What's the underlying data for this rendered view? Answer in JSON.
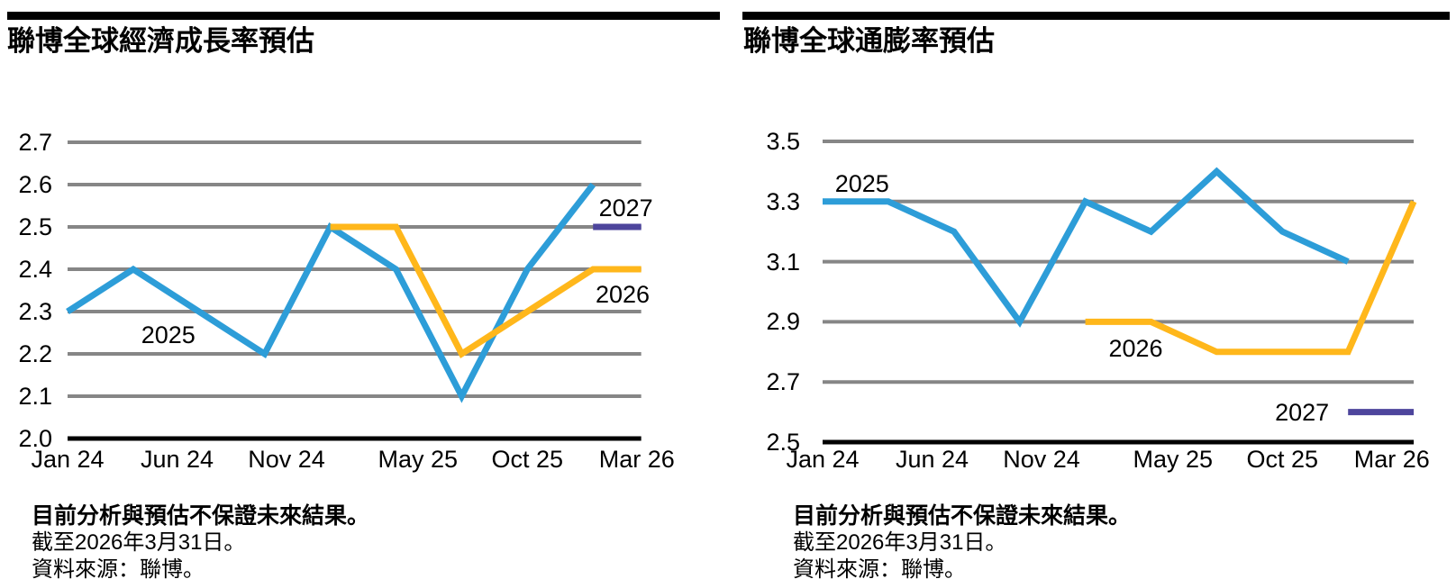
{
  "charts": [
    {
      "title": "聯博全球經濟成長率預估",
      "footer": {
        "disclaimer": "目前分析與預估不保證未來結果。",
        "as_of": "截至2026年3月31日。",
        "source": "資料來源：聯博。"
      },
      "chart_data": {
        "type": "line",
        "title": "聯博全球經濟成長率預估",
        "xlabel": "",
        "ylabel": "",
        "ylim": [
          2.0,
          2.7
        ],
        "y_tick_step": 0.1,
        "y_tick_labels": [
          "2.7",
          "2.6",
          "2.5",
          "2.4",
          "2.3",
          "2.2",
          "2.1",
          "2.0"
        ],
        "x_tick_labels": [
          "Jan 24",
          "Jun 24",
          "Nov 24",
          "May 25",
          "Oct 25",
          "Mar 26"
        ],
        "x_tick_months": [
          0,
          5,
          10,
          16,
          21,
          26
        ],
        "x_domain_months": [
          0,
          26.2
        ],
        "grid": true,
        "grid_color": "#868686",
        "axis_color": "#000000",
        "legend_position": "inline-annotations",
        "series": [
          {
            "name": "2025",
            "color": "#2D9DD8",
            "months": [
              0,
              3,
              6,
              9,
              12,
              15,
              18,
              21,
              24
            ],
            "values": [
              2.3,
              2.4,
              2.3,
              2.2,
              2.5,
              2.4,
              2.1,
              2.4,
              2.6
            ],
            "label": {
              "text": "2025",
              "m": 4.6,
              "v": 2.245
            }
          },
          {
            "name": "2026",
            "color": "#FFB71B",
            "months": [
              12,
              15,
              18,
              21,
              24,
              26.2
            ],
            "values": [
              2.5,
              2.5,
              2.2,
              2.3,
              2.4,
              2.4
            ],
            "label": {
              "text": "2026",
              "m": 25.35,
              "v": 2.34
            }
          },
          {
            "name": "2027",
            "color": "#4D459C",
            "months": [
              24,
              26.2
            ],
            "values": [
              2.5,
              2.5
            ],
            "label": {
              "text": "2027",
              "m": 25.5,
              "v": 2.545
            }
          }
        ]
      }
    },
    {
      "title": "聯博全球通膨率預估",
      "footer": {
        "disclaimer": "目前分析與預估不保證未來結果。",
        "as_of": "截至2026年3月31日。",
        "source": "資料來源：聯博。"
      },
      "chart_data": {
        "type": "line",
        "title": "聯博全球通膨率預估",
        "xlabel": "",
        "ylabel": "",
        "ylim": [
          2.5,
          3.5
        ],
        "y_tick_step": 0.2,
        "y_tick_labels": [
          "3.5",
          "3.3",
          "3.1",
          "2.9",
          "2.7",
          "2.5"
        ],
        "x_tick_labels": [
          "Jan 24",
          "Jun 24",
          "Nov 24",
          "May 25",
          "Oct 25",
          "Mar 26"
        ],
        "x_tick_months": [
          0,
          5,
          10,
          16,
          21,
          26
        ],
        "x_domain_months": [
          0,
          27
        ],
        "grid": true,
        "grid_color": "#868686",
        "axis_color": "#000000",
        "legend_position": "inline-annotations",
        "series": [
          {
            "name": "2025",
            "color": "#2D9DD8",
            "months": [
              0,
              3,
              6,
              9,
              12,
              15,
              18,
              21,
              24
            ],
            "values": [
              3.3,
              3.3,
              3.2,
              2.9,
              3.3,
              3.2,
              3.4,
              3.2,
              3.1
            ],
            "label": {
              "text": "2025",
              "m": 1.8,
              "v": 3.36
            }
          },
          {
            "name": "2026",
            "color": "#FFB71B",
            "months": [
              12,
              15,
              18,
              21,
              24,
              27
            ],
            "values": [
              2.9,
              2.9,
              2.8,
              2.8,
              2.8,
              3.3
            ],
            "label": {
              "text": "2026",
              "m": 14.3,
              "v": 2.81
            }
          },
          {
            "name": "2027",
            "color": "#4D459C",
            "months": [
              24,
              27
            ],
            "values": [
              2.6,
              2.6
            ],
            "label": {
              "text": "2027",
              "m": 21.9,
              "v": 2.6
            }
          }
        ]
      }
    }
  ]
}
